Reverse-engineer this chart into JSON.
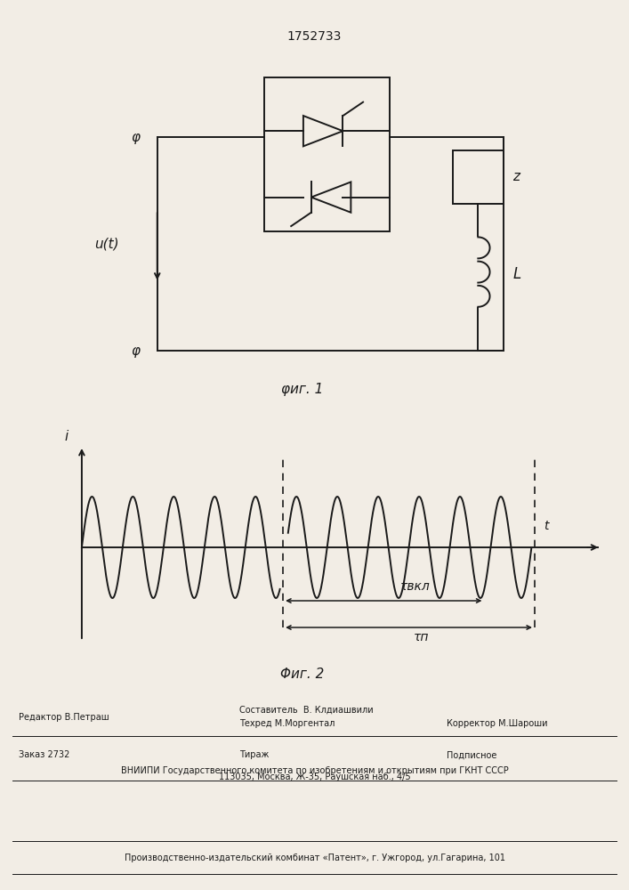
{
  "patent_number": "1752733",
  "fig1_label": "φиг. 1",
  "fig2_label": "Φиг. 2",
  "u_label": "u(t)",
  "i_label": "i",
  "t_label": "t",
  "L_label": "L",
  "z_label": "z",
  "tau_vkl_label": "τвкл",
  "tau_p_label": "τп",
  "phi_label": "φ",
  "editor_line": "Редактор В.Петраш",
  "composer_line": "Составитель  В. Клдиашвили",
  "techred_line": "Техред М.Моргентал",
  "corrector_line": "Корректор М.Шароши",
  "order_line": "Заказ 2732",
  "tirazh_line": "Тираж",
  "podpisnoe_line": "Подписное",
  "vniiipi_line": "ВНИИПИ Государственного комитета по изобретениям и открытиям при ГКНТ СССР",
  "addr_line": "113035, Москва, Ж-35, Раушская наб., 4/5",
  "plant_line": "Производственно-издательский комбинат «Патент», г. Ужгород, ул.Гагарина, 101",
  "bg_color": "#f2ede5",
  "line_color": "#1a1a1a"
}
